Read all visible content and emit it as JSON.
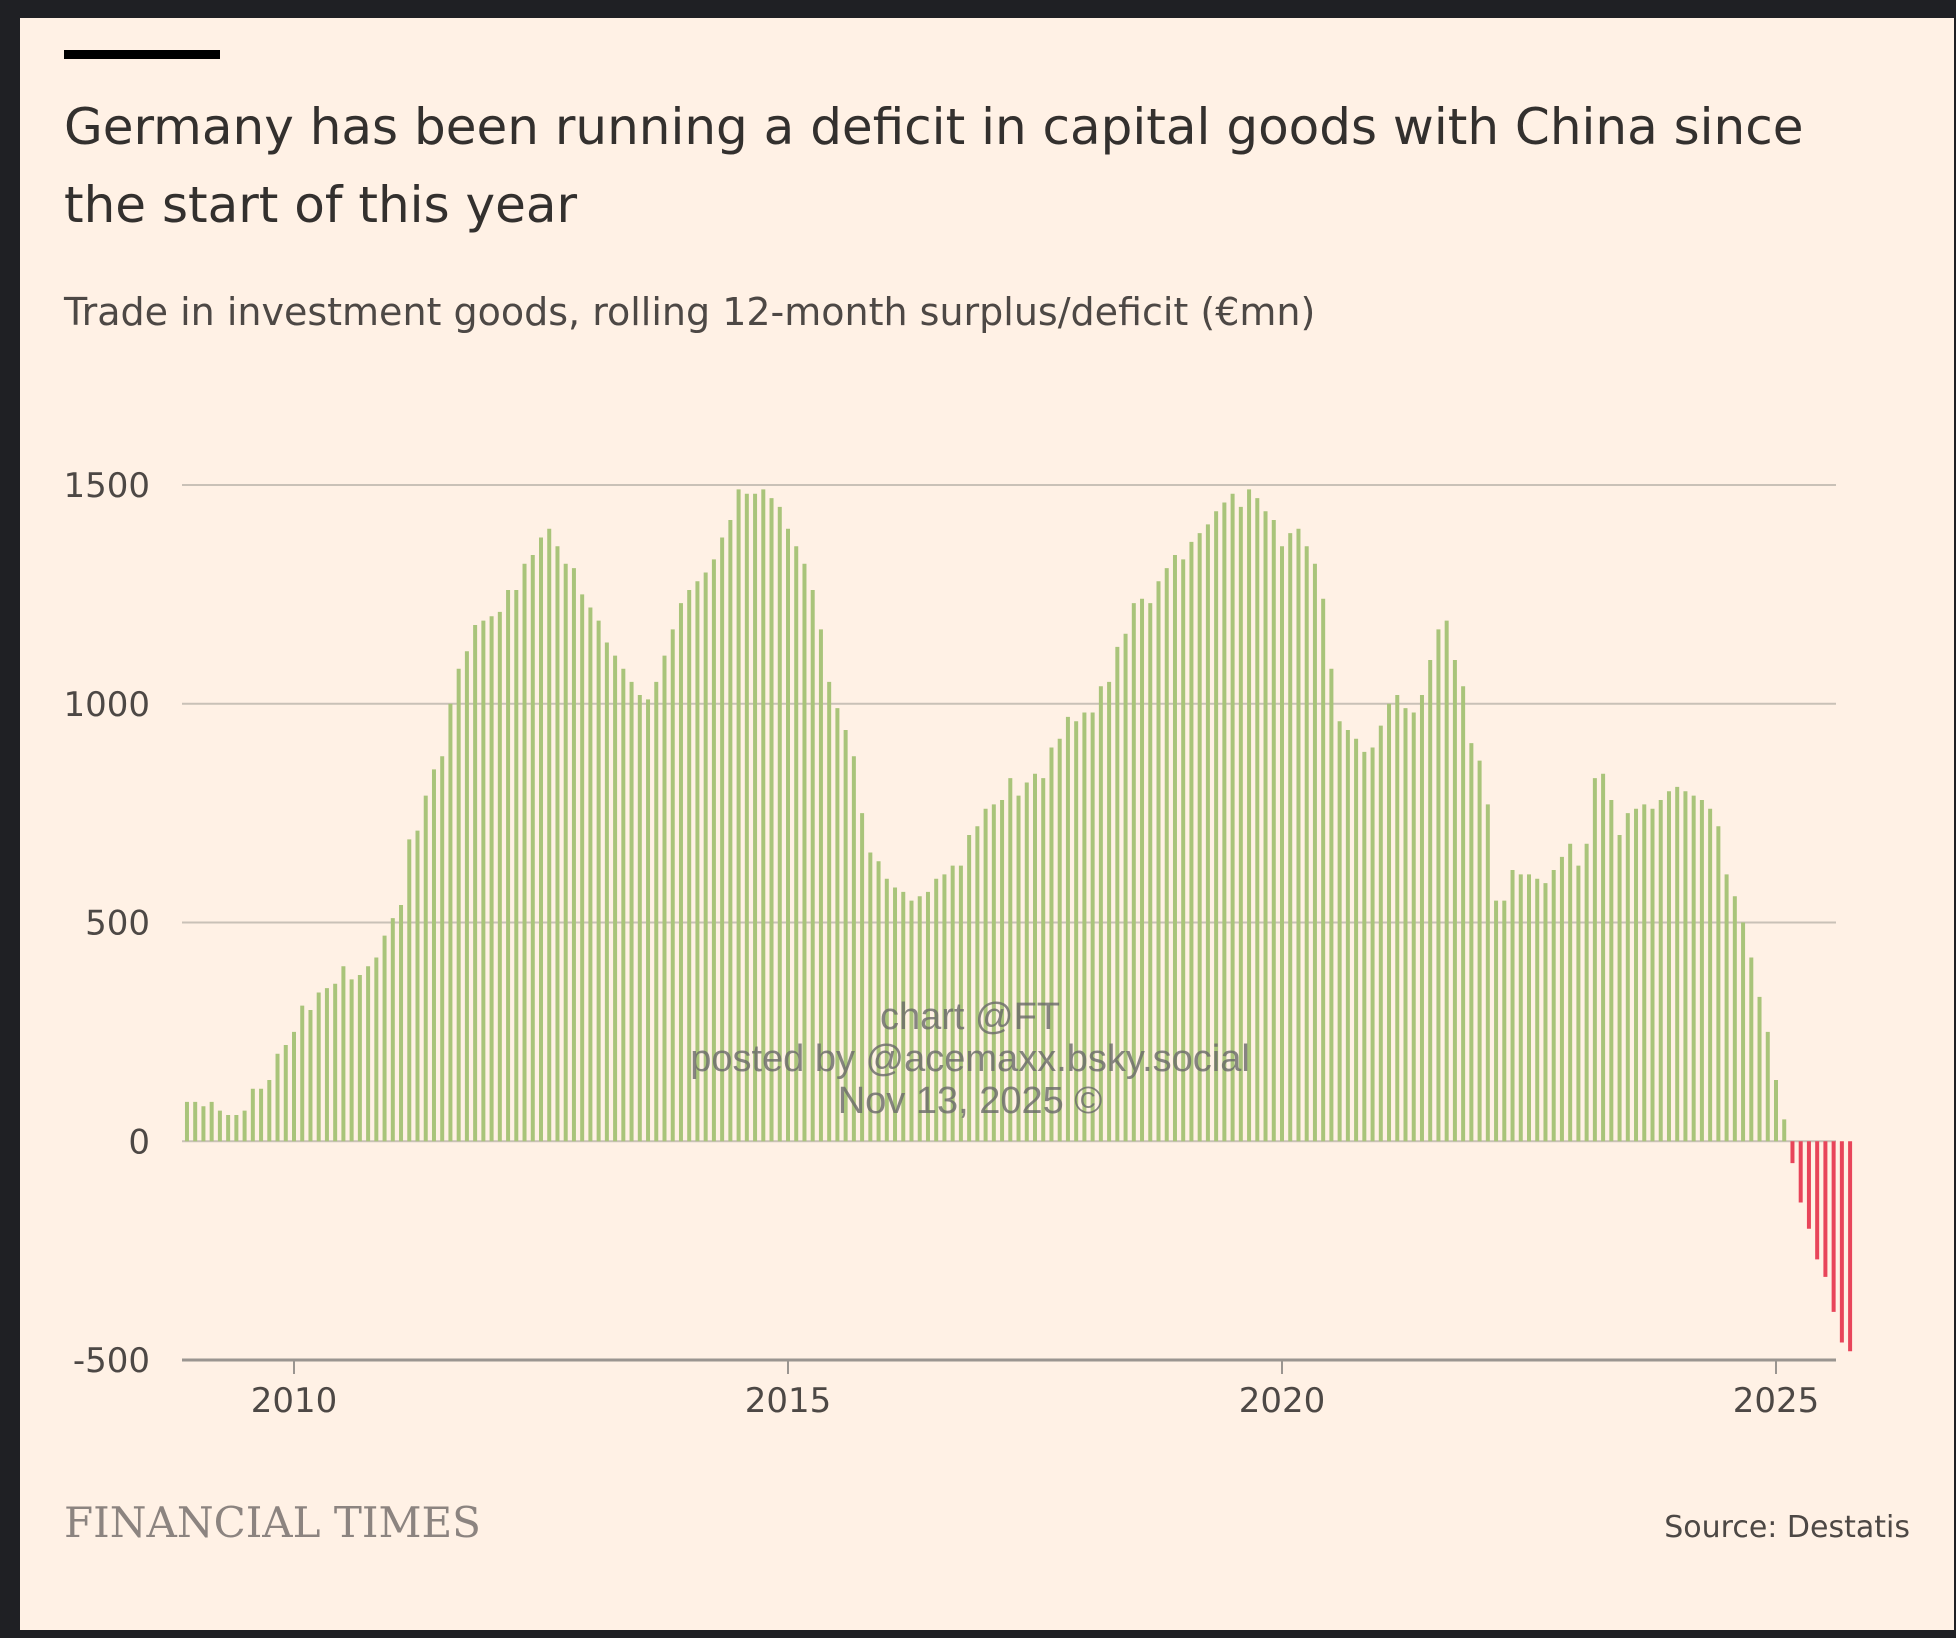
{
  "colors": {
    "positive": "#a9c47a",
    "negative": "#e8455a",
    "grid": "#c9c1b7",
    "axis": "#9a9590"
  },
  "header": {
    "title": "Germany has been running a deficit in capital goods with China since the start of this year",
    "subtitle": "Trade in investment goods, rolling 12-month surplus/deficit (€mn)"
  },
  "footer": {
    "brand": "FINANCIAL TIMES",
    "source": "Source: Destatis"
  },
  "watermark": {
    "line1": "chart @FT",
    "line2": "posted by @acemaxx.bsky.social",
    "line3": "Nov 13, 2025 ©"
  },
  "chart_data": {
    "type": "bar",
    "title": "Germany has been running a deficit in capital goods with China since the start of this year",
    "subtitle": "Trade in investment goods, rolling 12-month surplus/deficit (€mn)",
    "xlabel": "",
    "ylabel": "€mn",
    "ylim": [
      -500,
      1500
    ],
    "yticks": [
      1500,
      1000,
      500,
      0,
      -500
    ],
    "xticks": [
      "2010",
      "2015",
      "2020",
      "2025"
    ],
    "start": "2008-12",
    "frequency": "monthly",
    "values": [
      90,
      90,
      80,
      90,
      70,
      60,
      60,
      70,
      120,
      120,
      140,
      200,
      220,
      250,
      310,
      300,
      340,
      350,
      360,
      400,
      370,
      380,
      400,
      420,
      470,
      510,
      540,
      690,
      710,
      790,
      850,
      880,
      1000,
      1080,
      1120,
      1180,
      1190,
      1200,
      1210,
      1260,
      1260,
      1320,
      1340,
      1380,
      1400,
      1360,
      1320,
      1310,
      1250,
      1220,
      1190,
      1140,
      1110,
      1080,
      1050,
      1020,
      1010,
      1050,
      1110,
      1170,
      1230,
      1260,
      1280,
      1300,
      1330,
      1380,
      1420,
      1490,
      1480,
      1480,
      1490,
      1470,
      1450,
      1400,
      1360,
      1320,
      1260,
      1170,
      1050,
      990,
      940,
      880,
      750,
      660,
      640,
      600,
      580,
      570,
      550,
      560,
      570,
      600,
      610,
      630,
      630,
      700,
      720,
      760,
      770,
      780,
      830,
      790,
      820,
      840,
      830,
      900,
      920,
      970,
      960,
      980,
      980,
      1040,
      1050,
      1130,
      1160,
      1230,
      1240,
      1230,
      1280,
      1310,
      1340,
      1330,
      1370,
      1390,
      1410,
      1440,
      1460,
      1480,
      1450,
      1490,
      1470,
      1440,
      1420,
      1360,
      1390,
      1400,
      1360,
      1320,
      1240,
      1080,
      960,
      940,
      920,
      890,
      900,
      950,
      1000,
      1020,
      990,
      980,
      1020,
      1100,
      1170,
      1190,
      1100,
      1040,
      910,
      870,
      770,
      550,
      550,
      620,
      610,
      610,
      600,
      590,
      620,
      650,
      680,
      630,
      680,
      830,
      840,
      780,
      700,
      750,
      760,
      770,
      760,
      780,
      800,
      810,
      800,
      790,
      780,
      760,
      720,
      610,
      560,
      500,
      420,
      330,
      250,
      140,
      50,
      -50,
      -140,
      -200,
      -270,
      -310,
      -390,
      -460,
      -480
    ]
  }
}
